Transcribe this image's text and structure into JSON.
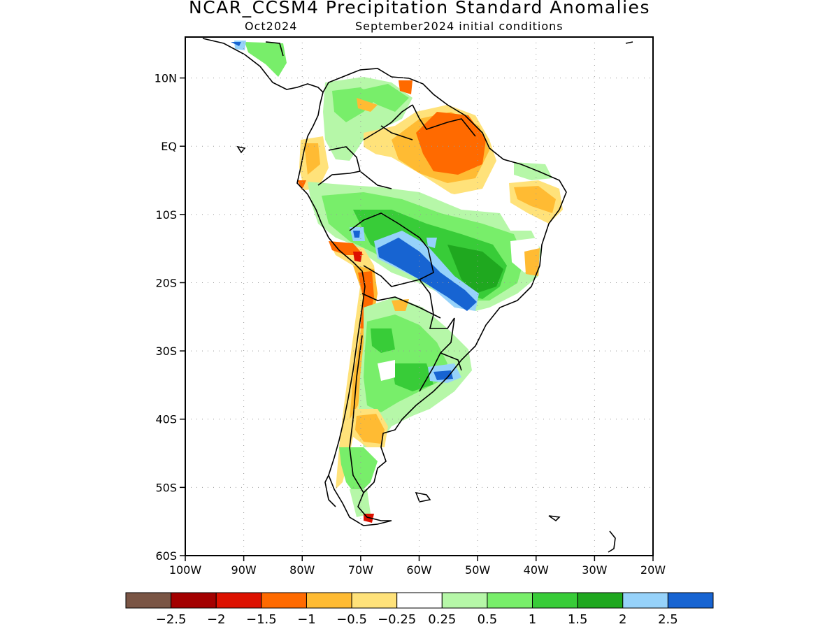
{
  "title": "NCAR_CCSM4 Precipitation Standard Anomalies",
  "subtitle_left": "Oct2024",
  "subtitle_right": "September2024 initial conditions",
  "map": {
    "lat_ticks": [
      "10N",
      "EQ",
      "10S",
      "20S",
      "30S",
      "40S",
      "50S",
      "60S"
    ],
    "lat_values": [
      10,
      0,
      -10,
      -20,
      -30,
      -40,
      -50,
      -60
    ],
    "lon_ticks": [
      "100W",
      "90W",
      "80W",
      "70W",
      "60W",
      "50W",
      "40W",
      "30W",
      "20W"
    ],
    "lon_values": [
      -100,
      -90,
      -80,
      -70,
      -60,
      -50,
      -40,
      -30,
      -20
    ],
    "lon_range": [
      -100,
      -20
    ],
    "lat_range": [
      -60,
      16
    ],
    "grid": "dotted"
  },
  "colorbar": {
    "colors": [
      "#7a5545",
      "#a30000",
      "#dd1100",
      "#ff6a00",
      "#ffbb33",
      "#ffe27a",
      "#ffffff",
      "#b6f7a8",
      "#78ee6a",
      "#38cc38",
      "#1fa81f",
      "#96d2fa",
      "#1764d2"
    ],
    "labels": [
      "−2.5",
      "−2",
      "−1.5",
      "−1",
      "−0.5",
      "−0.25",
      "0.25",
      "0.5",
      "1",
      "1.5",
      "2",
      "2.5"
    ]
  },
  "anomalies": [
    {
      "region": "northern-amazon-orinoco",
      "category": "−1"
    },
    {
      "region": "central-brazil-pantanal",
      "category": "2.5"
    },
    {
      "region": "southern-brazil-argentina",
      "category": "1"
    },
    {
      "region": "andes-chile",
      "category": "−0.5"
    },
    {
      "region": "patagonia-north",
      "category": "−0.5"
    }
  ]
}
